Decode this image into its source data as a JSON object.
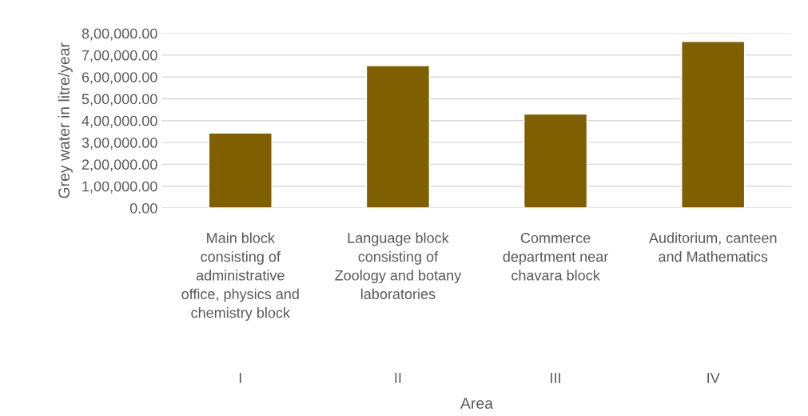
{
  "chart_data": {
    "type": "bar",
    "xlabel": "Area",
    "ylabel": "Grey water in litre/year",
    "categories": [
      "Main block\nconsisting of\nadministrative\noffice, physics and\nchemistry block",
      "Language block\nconsisting of\nZoology and botany\nlaboratories",
      "Commerce\ndepartment near\nchavara block",
      "Auditorium, canteen\nand Mathematics"
    ],
    "annotations": [
      "I",
      "II",
      "III",
      "IV"
    ],
    "values": [
      343000,
      652000,
      430000,
      763000
    ],
    "color": "#7f5f00",
    "ylim": [
      0,
      800000
    ],
    "yticks": [
      {
        "value": 0,
        "label": "0.00"
      },
      {
        "value": 100000,
        "label": "1,00,000.00"
      },
      {
        "value": 200000,
        "label": "2,00,000.00"
      },
      {
        "value": 300000,
        "label": "3,00,000.00"
      },
      {
        "value": 400000,
        "label": "4,00,000.00"
      },
      {
        "value": 500000,
        "label": "5,00,000.00"
      },
      {
        "value": 600000,
        "label": "6,00,000.00"
      },
      {
        "value": 700000,
        "label": "7,00,000.00"
      },
      {
        "value": 800000,
        "label": "8,00,000.00"
      }
    ],
    "grid": "y"
  }
}
